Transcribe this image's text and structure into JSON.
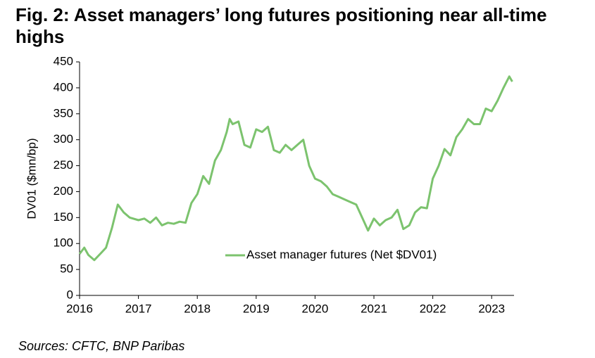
{
  "chart_data": {
    "type": "line",
    "title": "Fig. 2: Asset managers’ long futures positioning near all-time highs",
    "ylabel": "DV01 ($mn/bp)",
    "source": "Sources: CFTC, BNP Paribas",
    "legend": "right",
    "x": [
      2016.0,
      2016.08,
      2016.15,
      2016.25,
      2016.35,
      2016.45,
      2016.55,
      2016.65,
      2016.75,
      2016.85,
      2017.0,
      2017.1,
      2017.2,
      2017.3,
      2017.4,
      2017.5,
      2017.6,
      2017.7,
      2017.8,
      2017.9,
      2018.0,
      2018.1,
      2018.2,
      2018.3,
      2018.4,
      2018.5,
      2018.55,
      2018.6,
      2018.7,
      2018.8,
      2018.9,
      2019.0,
      2019.1,
      2019.2,
      2019.3,
      2019.4,
      2019.5,
      2019.6,
      2019.7,
      2019.8,
      2019.9,
      2020.0,
      2020.1,
      2020.2,
      2020.3,
      2020.4,
      2020.5,
      2020.6,
      2020.7,
      2020.8,
      2020.9,
      2021.0,
      2021.1,
      2021.2,
      2021.3,
      2021.4,
      2021.5,
      2021.6,
      2021.7,
      2021.8,
      2021.9,
      2022.0,
      2022.1,
      2022.2,
      2022.3,
      2022.4,
      2022.5,
      2022.6,
      2022.7,
      2022.8,
      2022.9,
      2023.0,
      2023.1,
      2023.2,
      2023.3,
      2023.35
    ],
    "series": [
      {
        "name": "Asset manager futures (Net $DV01)",
        "color": "#7cc36e",
        "values": [
          80,
          92,
          78,
          68,
          80,
          92,
          130,
          175,
          160,
          150,
          145,
          148,
          140,
          150,
          135,
          140,
          138,
          142,
          140,
          178,
          195,
          230,
          215,
          260,
          280,
          315,
          340,
          330,
          335,
          290,
          285,
          320,
          315,
          325,
          280,
          275,
          290,
          280,
          290,
          300,
          250,
          225,
          220,
          210,
          195,
          190,
          185,
          180,
          175,
          150,
          125,
          148,
          135,
          145,
          150,
          165,
          128,
          135,
          160,
          170,
          168,
          225,
          250,
          282,
          270,
          305,
          320,
          340,
          330,
          330,
          360,
          355,
          375,
          400,
          422,
          412
        ]
      }
    ],
    "xlim": [
      2016,
      2023.38
    ],
    "xticks": [
      2016,
      2017,
      2018,
      2019,
      2020,
      2021,
      2022,
      2023
    ],
    "ylim": [
      0,
      450
    ],
    "yticks": [
      0,
      50,
      100,
      150,
      200,
      250,
      300,
      350,
      400,
      450
    ]
  }
}
